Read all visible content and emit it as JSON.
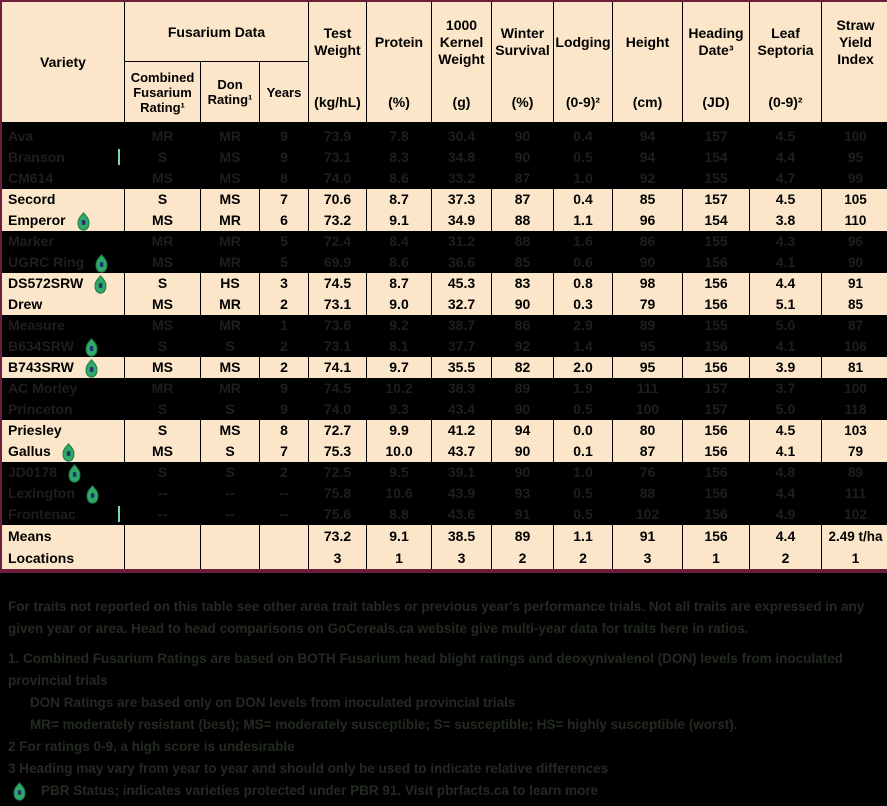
{
  "colors": {
    "table_bg": "#fce6c9",
    "frame": "#6d1d3c",
    "grid": "#000000",
    "text": "#000000",
    "hidden_bg": "#000000",
    "hidden_text": "#1e1e1e",
    "footnote_text": "#232a21",
    "icon_green": "#2fa868",
    "icon_green_dark": "#1e7a4a",
    "icon_mark": "#1c2f6e",
    "cursor_teal": "#79d6c3"
  },
  "header": {
    "variety": "Variety",
    "fusarium_group": "Fusarium Data",
    "sub": [
      {
        "label": "Combined Fusarium Rating¹"
      },
      {
        "label": "Don Rating¹"
      },
      {
        "label": "Years"
      }
    ],
    "metrics": [
      {
        "label": "Test Weight",
        "unit": "(kg/hL)"
      },
      {
        "label": "Protein",
        "unit": "(%)"
      },
      {
        "label": "1000 Kernel Weight",
        "unit": "(g)"
      },
      {
        "label": "Winter Survival",
        "unit": "(%)"
      },
      {
        "label": "Lodging",
        "unit": "(0-9)²"
      },
      {
        "label": "Height",
        "unit": "(cm)"
      },
      {
        "label": "Heading Date³",
        "unit": "(JD)"
      },
      {
        "label": "Leaf Septoria",
        "unit": "(0-9)²"
      },
      {
        "label": "Straw Yield Index",
        "unit": ""
      }
    ]
  },
  "table": {
    "rows": [
      {
        "variety": "Ava",
        "hidden": true,
        "icon": false,
        "cursor": false,
        "values": [
          "MR",
          "MR",
          "9",
          "73.9",
          "7.8",
          "30.4",
          "90",
          "0.4",
          "94",
          "157",
          "4.5",
          "100"
        ]
      },
      {
        "variety": "Branson",
        "hidden": true,
        "icon": false,
        "cursor": true,
        "values": [
          "S",
          "MS",
          "9",
          "73.1",
          "8.3",
          "34.8",
          "90",
          "0.5",
          "94",
          "154",
          "4.4",
          "95"
        ]
      },
      {
        "variety": "CM614",
        "hidden": true,
        "icon": false,
        "cursor": false,
        "values": [
          "MS",
          "MS",
          "8",
          "74.0",
          "8.6",
          "33.2",
          "87",
          "1.0",
          "92",
          "155",
          "4.7",
          "99"
        ]
      },
      {
        "variety": "Secord",
        "hidden": false,
        "icon": false,
        "cursor": false,
        "values": [
          "S",
          "MS",
          "7",
          "70.6",
          "8.7",
          "37.3",
          "87",
          "0.4",
          "85",
          "157",
          "4.5",
          "105"
        ]
      },
      {
        "variety": "Emperor",
        "hidden": false,
        "icon": true,
        "cursor": false,
        "values": [
          "MS",
          "MR",
          "6",
          "73.2",
          "9.1",
          "34.9",
          "88",
          "1.1",
          "96",
          "154",
          "3.8",
          "110"
        ]
      },
      {
        "variety": "Marker",
        "hidden": true,
        "icon": false,
        "cursor": false,
        "values": [
          "MR",
          "MR",
          "5",
          "72.4",
          "8.4",
          "31.2",
          "88",
          "1.6",
          "86",
          "155",
          "4.3",
          "96"
        ]
      },
      {
        "variety": "UGRC Ring",
        "hidden": true,
        "icon": true,
        "cursor": false,
        "values": [
          "MS",
          "MR",
          "5",
          "69.9",
          "8.6",
          "36.6",
          "85",
          "0.6",
          "90",
          "156",
          "4.1",
          "90"
        ]
      },
      {
        "variety": "DS572SRW",
        "hidden": false,
        "icon": true,
        "cursor": false,
        "values": [
          "S",
          "HS",
          "3",
          "74.5",
          "8.7",
          "45.3",
          "83",
          "0.8",
          "98",
          "156",
          "4.4",
          "91"
        ]
      },
      {
        "variety": "Drew",
        "hidden": false,
        "icon": false,
        "cursor": false,
        "values": [
          "MS",
          "MR",
          "2",
          "73.1",
          "9.0",
          "32.7",
          "90",
          "0.3",
          "79",
          "156",
          "5.1",
          "85"
        ]
      },
      {
        "variety": "Measure",
        "hidden": true,
        "icon": false,
        "cursor": false,
        "values": [
          "MS",
          "MR",
          "1",
          "73.6",
          "9.2",
          "38.7",
          "86",
          "2.9",
          "89",
          "155",
          "5.0",
          "87"
        ]
      },
      {
        "variety": "B634SRW",
        "hidden": true,
        "icon": true,
        "cursor": false,
        "values": [
          "S",
          "S",
          "2",
          "73.1",
          "8.1",
          "37.7",
          "92",
          "1.4",
          "95",
          "156",
          "4.1",
          "106"
        ]
      },
      {
        "variety": "B743SRW",
        "hidden": false,
        "icon": true,
        "cursor": false,
        "values": [
          "MS",
          "MS",
          "2",
          "74.1",
          "9.7",
          "35.5",
          "82",
          "2.0",
          "95",
          "156",
          "3.9",
          "81"
        ]
      },
      {
        "variety": "AC Morley",
        "hidden": true,
        "icon": false,
        "cursor": false,
        "values": [
          "MR",
          "MR",
          "9",
          "74.5",
          "10.2",
          "38.3",
          "89",
          "1.9",
          "111",
          "157",
          "3.7",
          "100"
        ]
      },
      {
        "variety": "Princeton",
        "hidden": true,
        "icon": false,
        "cursor": false,
        "values": [
          "S",
          "S",
          "9",
          "74.0",
          "9.3",
          "43.4",
          "90",
          "0.5",
          "100",
          "157",
          "5.0",
          "118"
        ]
      },
      {
        "variety": "Priesley",
        "hidden": false,
        "icon": false,
        "cursor": false,
        "values": [
          "S",
          "MS",
          "8",
          "72.7",
          "9.9",
          "41.2",
          "94",
          "0.0",
          "80",
          "156",
          "4.5",
          "103"
        ]
      },
      {
        "variety": "Gallus",
        "hidden": false,
        "icon": true,
        "cursor": false,
        "values": [
          "MS",
          "S",
          "7",
          "75.3",
          "10.0",
          "43.7",
          "90",
          "0.1",
          "87",
          "156",
          "4.1",
          "79"
        ]
      },
      {
        "variety": "JD0178",
        "hidden": true,
        "icon": true,
        "cursor": false,
        "values": [
          "S",
          "S",
          "2",
          "72.5",
          "9.5",
          "39.1",
          "90",
          "1.0",
          "76",
          "156",
          "4.8",
          "89"
        ]
      },
      {
        "variety": "Lexington",
        "hidden": true,
        "icon": true,
        "cursor": false,
        "values": [
          "--",
          "--",
          "--",
          "75.8",
          "10.6",
          "43.9",
          "93",
          "0.5",
          "88",
          "156",
          "4.4",
          "111"
        ]
      },
      {
        "variety": "Frontenac",
        "hidden": true,
        "icon": false,
        "cursor": true,
        "values": [
          "--",
          "--",
          "--",
          "75.6",
          "8.8",
          "43.6",
          "91",
          "0.5",
          "102",
          "156",
          "4.9",
          "102"
        ]
      },
      {
        "variety": "Means",
        "hidden": false,
        "icon": false,
        "cursor": false,
        "summary": true,
        "values": [
          "",
          "",
          "",
          "73.2",
          "9.1",
          "38.5",
          "89",
          "1.1",
          "91",
          "156",
          "4.4",
          "2.49 t/ha"
        ]
      },
      {
        "variety": "Locations",
        "hidden": false,
        "icon": false,
        "cursor": false,
        "summary": true,
        "values": [
          "",
          "",
          "",
          "3",
          "1",
          "3",
          "2",
          "2",
          "3",
          "1",
          "2",
          "1"
        ]
      }
    ]
  },
  "footnotes": {
    "lines": [
      {
        "text": "For traits not reported on this table see other area trait tables or previous year's performance trials. Not all traits are expressed in any given year or area. Head to head comparisons on GoCereals.ca website give multi-year data for traits here in ratios.",
        "para": true
      },
      {
        "text": "1. Combined Fusarium Ratings are based on BOTH Fusarium head blight ratings and deoxynivalenol (DON) levels from inoculated provincial trials"
      },
      {
        "text": "DON Ratings are based only on DON levels from inoculated provincial trials",
        "indent": true
      },
      {
        "text": "MR= moderately resistant (best); MS= moderately susceptible; S= susceptible; HS= highly susceptible (worst).",
        "indent": true
      },
      {
        "text": "2 For ratings 0-9, a high score is undesirable"
      },
      {
        "text": "3 Heading may vary from year to year and should only be used to indicate relative differences"
      },
      {
        "text": "PBR Status; indicates varieties protected under PBR 91. Visit pbrfacts.ca to learn more",
        "icon": true
      }
    ]
  }
}
